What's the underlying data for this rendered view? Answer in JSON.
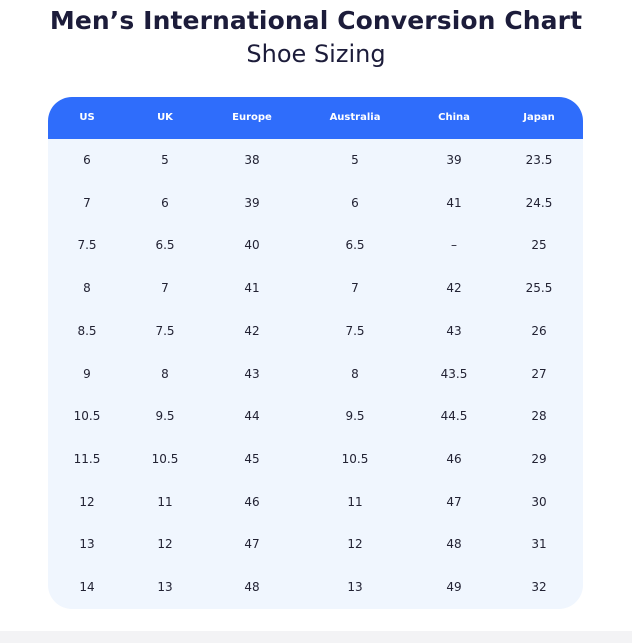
{
  "header": {
    "title": "Men’s International Conversion Chart",
    "subtitle": "Shoe Sizing"
  },
  "table": {
    "columns": [
      "US",
      "UK",
      "Europe",
      "Australia",
      "China",
      "Japan"
    ],
    "rows": [
      [
        "6",
        "5",
        "38",
        "5",
        "39",
        "23.5"
      ],
      [
        "7",
        "6",
        "39",
        "6",
        "41",
        "24.5"
      ],
      [
        "7.5",
        "6.5",
        "40",
        "6.5",
        "–",
        "25"
      ],
      [
        "8",
        "7",
        "41",
        "7",
        "42",
        "25.5"
      ],
      [
        "8.5",
        "7.5",
        "42",
        "7.5",
        "43",
        "26"
      ],
      [
        "9",
        "8",
        "43",
        "8",
        "43.5",
        "27"
      ],
      [
        "10.5",
        "9.5",
        "44",
        "9.5",
        "44.5",
        "28"
      ],
      [
        "11.5",
        "10.5",
        "45",
        "10.5",
        "46",
        "29"
      ],
      [
        "12",
        "11",
        "46",
        "11",
        "47",
        "30"
      ],
      [
        "13",
        "12",
        "47",
        "12",
        "48",
        "31"
      ],
      [
        "14",
        "13",
        "48",
        "13",
        "49",
        "32"
      ]
    ]
  },
  "colors": {
    "header_background": "#2f6dfb",
    "table_background": "#f0f6fe",
    "title_text": "#1c1c3a"
  }
}
